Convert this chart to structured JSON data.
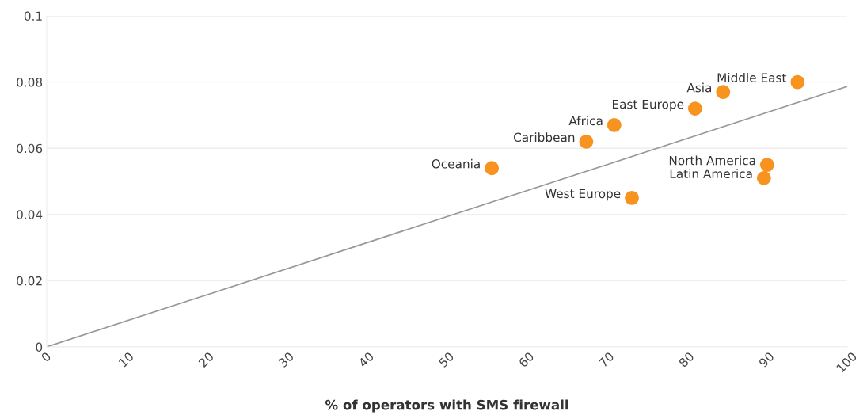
{
  "chart_data": {
    "type": "scatter",
    "xlabel": "% of operators with SMS firewall",
    "xlim": [
      0,
      100
    ],
    "xticks": [
      0,
      10,
      20,
      30,
      40,
      50,
      60,
      70,
      80,
      90,
      100
    ],
    "ylim": [
      0,
      0.1
    ],
    "yticks": [
      0,
      0.02,
      0.04,
      0.06,
      0.08,
      0.1
    ],
    "grid": "y",
    "legend": false,
    "series": [
      {
        "color": "#f7931e",
        "marker": "circle",
        "x": [
          55.6,
          67.4,
          70.9,
          73.1,
          81.0,
          84.5,
          90.0,
          89.6,
          93.8
        ],
        "values": [
          0.054,
          0.062,
          0.067,
          0.045,
          0.072,
          0.077,
          0.055,
          0.051,
          0.08
        ]
      },
      {
        "type": "line",
        "color": "#999999",
        "marker": "none",
        "x": [
          0,
          100
        ],
        "values": [
          0,
          0.0787
        ]
      }
    ],
    "annotations": [
      {
        "text": "Oceania",
        "x": 55.6,
        "y": 0.054
      },
      {
        "text": "Caribbean",
        "x": 67.4,
        "y": 0.062
      },
      {
        "text": "Africa",
        "x": 70.9,
        "y": 0.067
      },
      {
        "text": "West Europe",
        "x": 73.1,
        "y": 0.045
      },
      {
        "text": "East Europe",
        "x": 81.0,
        "y": 0.072
      },
      {
        "text": "Asia",
        "x": 84.5,
        "y": 0.077
      },
      {
        "text": "North America",
        "x": 90.0,
        "y": 0.055
      },
      {
        "text": "Latin America",
        "x": 89.6,
        "y": 0.051
      },
      {
        "text": "Middle East",
        "x": 93.8,
        "y": 0.08
      }
    ]
  }
}
